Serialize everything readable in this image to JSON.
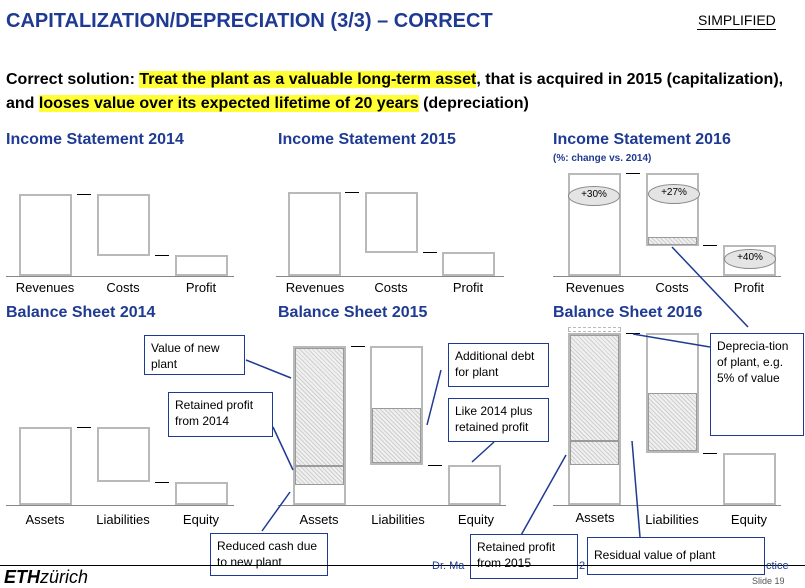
{
  "header": {
    "title": "CAPITALIZATION/DEPRECIATION (3/3) – CORRECT",
    "badge": "SIMPLIFIED"
  },
  "intro": {
    "p1": "Correct solution: ",
    "h1": "Treat the plant as a valuable long-term asset",
    "p2": ", that is acquired in 2015 (capitalization), and ",
    "h2": "looses value over its expected lifetime of 20 years",
    "p3": " (depreciation)"
  },
  "income_2014": {
    "title": "Income Statement 2014",
    "labels": [
      "Revenues",
      "Costs",
      "Profit"
    ]
  },
  "income_2015": {
    "title": "Income Statement 2015",
    "labels": [
      "Revenues",
      "Costs",
      "Profit"
    ]
  },
  "income_2016": {
    "title": "Income Statement 2016",
    "note": "(%: change vs. 2014)",
    "labels": [
      "Revenues",
      "Costs",
      "Profit"
    ],
    "changes": [
      "+30%",
      "+27%",
      "+40%"
    ]
  },
  "balance_2014": {
    "title": "Balance Sheet 2014",
    "labels": [
      "Assets",
      "Liabilities",
      "Equity"
    ]
  },
  "balance_2015": {
    "title": "Balance Sheet 2015",
    "labels": [
      "Assets",
      "Liabilities",
      "Equity"
    ]
  },
  "balance_2016": {
    "title": "Balance Sheet 2016",
    "labels": [
      "Assets",
      "Liabilities",
      "Equity"
    ]
  },
  "callouts": {
    "value_new_plant": "Value of new plant",
    "retained_2014": "Retained profit from 2014",
    "reduced_cash": "Reduced cash due to new plant",
    "additional_debt": "Additional debt for plant",
    "like_2014": "Like 2014 plus retained profit",
    "retained_2015": "Retained profit from 2015",
    "depreciation": "Deprecia-tion of plant, e.g. 5% of value",
    "residual": "Residual value of plant"
  },
  "footer": {
    "logo_bold": "ETH",
    "logo_rest": "zürich",
    "presenter": "Dr. Ma",
    "mid": "2",
    "right": "ctice",
    "slide": "Slide 19"
  },
  "colors": {
    "title_blue": "#1f3a93",
    "highlight": "#ffff33",
    "bar_border": "#b9b9b9"
  }
}
